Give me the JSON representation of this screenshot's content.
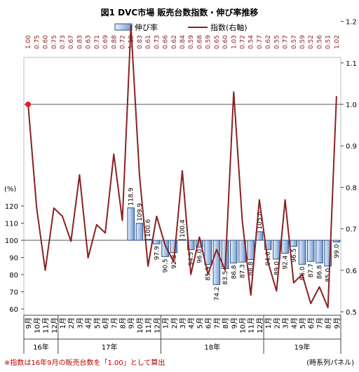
{
  "chart_data": {
    "type": "bar+line",
    "title": "図1 DVC市場 販売台数指数・伸び率推移",
    "legend": {
      "position": "top",
      "bar_label": "伸び率",
      "line_label": "指数(右軸)"
    },
    "left_axis": {
      "unit_label": "(%)",
      "ticks": [
        60,
        70,
        80,
        90,
        100,
        110,
        120
      ],
      "ylim": [
        55,
        125
      ]
    },
    "right_axis": {
      "ticks": [
        "0.5",
        "0.6",
        "0.7",
        "0.8",
        "0.9",
        "1.0",
        "1.1",
        "1.2"
      ],
      "ylim": [
        0.45,
        1.23
      ]
    },
    "categories": [
      "9月",
      "10月",
      "11月",
      "12月",
      "1月",
      "2月",
      "3月",
      "4月",
      "5月",
      "6月",
      "7月",
      "8月",
      "9月",
      "10月",
      "11月",
      "12月",
      "1月",
      "2月",
      "3月",
      "4月",
      "5月",
      "6月",
      "7月",
      "8月",
      "9月",
      "10月",
      "11月",
      "12月",
      "1月",
      "2月",
      "3月",
      "4月",
      "5月",
      "6月",
      "7月",
      "8月",
      "9月"
    ],
    "year_groups": [
      {
        "label": "16年",
        "start": 0,
        "end": 3
      },
      {
        "label": "17年",
        "start": 4,
        "end": 15
      },
      {
        "label": "18年",
        "start": 16,
        "end": 27
      },
      {
        "label": "19年",
        "start": 28,
        "end": 36
      }
    ],
    "index_labels": [
      "1.00",
      "0.75",
      "0.60",
      "0.75",
      "0.73",
      "0.67",
      "0.83",
      "0.63",
      "0.71",
      "0.69",
      "0.88",
      "0.72",
      "1.19",
      "0.83",
      "0.61",
      "0.73",
      "0.66",
      "0.62",
      "0.84",
      "0.59",
      "0.68",
      "0.59",
      "0.65",
      "0.60",
      "1.03",
      "0.72",
      "0.54",
      "0.77",
      "0.62",
      "0.55",
      "0.77",
      "0.57",
      "0.59",
      "0.52",
      "0.56",
      "0.51",
      "1.02"
    ],
    "index_values": [
      1.0,
      0.75,
      0.6,
      0.75,
      0.73,
      0.67,
      0.83,
      0.63,
      0.71,
      0.69,
      0.88,
      0.72,
      1.19,
      0.83,
      0.61,
      0.73,
      0.66,
      0.62,
      0.84,
      0.59,
      0.68,
      0.59,
      0.65,
      0.6,
      1.03,
      0.72,
      0.54,
      0.77,
      0.62,
      0.55,
      0.77,
      0.57,
      0.59,
      0.52,
      0.56,
      0.51,
      1.02
    ],
    "growth_values": [
      null,
      null,
      null,
      null,
      null,
      null,
      null,
      null,
      null,
      null,
      null,
      null,
      118.9,
      109.9,
      100.6,
      97.9,
      90.5,
      92.8,
      100.4,
      94.5,
      96.0,
      85.9,
      74.2,
      83.5,
      86.8,
      87.3,
      88.8,
      105.0,
      94.6,
      89.0,
      92.4,
      96.5,
      86.0,
      87.7,
      86.8,
      85.0,
      99.0
    ],
    "growth_labels": [
      null,
      null,
      null,
      null,
      null,
      null,
      null,
      null,
      null,
      null,
      null,
      null,
      "118.9",
      "109.9",
      "100.6",
      "97.9",
      "90.5",
      "92.8",
      "100.4",
      "94.5",
      "96.0",
      "85.9",
      "74.2",
      "83.5",
      "86.8",
      "87.3",
      "88.8",
      "105.0",
      "94.6",
      "89.0",
      "92.4",
      "96.5",
      "86.0",
      "87.7",
      "86.8",
      "85.0",
      "99.0"
    ],
    "footnote": "※指数は16年9月の販売台数を「1.00」として算出",
    "source_note": "(時系列パネル)",
    "colors": {
      "line": "#8b2020",
      "marker": "#e02020",
      "bar_edge": "#2a4f86",
      "bar_light": "#eef4fb",
      "bar_dark": "#7fa6d8"
    }
  }
}
